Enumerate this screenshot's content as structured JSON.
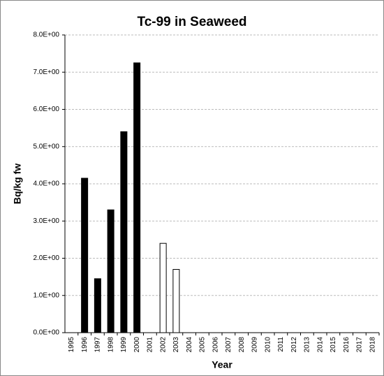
{
  "chart_data": {
    "type": "bar",
    "title": "Tc-99 in Seaweed",
    "x_label": "Year",
    "y_label": "Bq/kg fw",
    "categories": [
      "1995",
      "1996",
      "1997",
      "1998",
      "1999",
      "2000",
      "2001",
      "2002",
      "2003",
      "2004",
      "2005",
      "2006",
      "2007",
      "2008",
      "2009",
      "2010",
      "2011",
      "2012",
      "2013",
      "2014",
      "2015",
      "2016",
      "2017",
      "2018"
    ],
    "series": [
      {
        "color": "#000000",
        "values": [
          null,
          4.15,
          1.45,
          3.3,
          5.4,
          7.25,
          null,
          null,
          null,
          null,
          null,
          null,
          null,
          null,
          null,
          null,
          null,
          null,
          null,
          null,
          null,
          null,
          null,
          null
        ]
      },
      {
        "color": "#ffffff",
        "values": [
          null,
          null,
          null,
          null,
          null,
          null,
          null,
          2.4,
          1.7,
          null,
          null,
          null,
          null,
          null,
          null,
          null,
          null,
          null,
          null,
          null,
          null,
          null,
          null,
          null
        ]
      }
    ],
    "ylim": [
      0,
      8
    ],
    "yticks": [
      {
        "value": 0,
        "label": "0.0E+00"
      },
      {
        "value": 1,
        "label": "1.0E+00"
      },
      {
        "value": 2,
        "label": "2.0E+00"
      },
      {
        "value": 3,
        "label": "3.0E+00"
      },
      {
        "value": 4,
        "label": "4.0E+00"
      },
      {
        "value": 5,
        "label": "5.0E+00"
      },
      {
        "value": 6,
        "label": "6.0E+00"
      },
      {
        "value": 7,
        "label": "7.0E+00"
      },
      {
        "value": 8,
        "label": "8.0E+00"
      }
    ],
    "grid": true
  }
}
